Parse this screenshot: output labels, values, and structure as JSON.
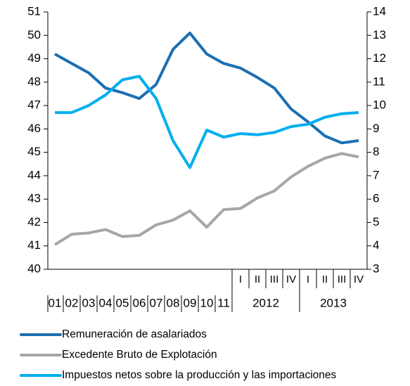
{
  "chart_data": {
    "type": "line",
    "categories": [
      "01",
      "02",
      "03",
      "04",
      "05",
      "06",
      "07",
      "08",
      "09",
      "10",
      "11",
      "I",
      "II",
      "III",
      "IV",
      "I",
      "II",
      "III",
      "IV"
    ],
    "year_groups": [
      "2012",
      "2013"
    ],
    "series": [
      {
        "name": "Remuneración de asalariados",
        "color": "#1b6fb3",
        "values": [
          49.2,
          48.8,
          48.4,
          47.75,
          47.55,
          47.3,
          47.9,
          49.4,
          50.1,
          49.2,
          48.8,
          48.6,
          48.2,
          47.75,
          46.85,
          46.3,
          45.7,
          45.4,
          45.5
        ]
      },
      {
        "name": "Excedente Bruto de Explotación",
        "color": "#a6a6a6",
        "values": [
          41.05,
          41.5,
          41.55,
          41.7,
          41.4,
          41.45,
          41.9,
          42.1,
          42.5,
          41.8,
          42.55,
          42.6,
          43.05,
          43.35,
          43.95,
          44.4,
          44.75,
          44.95,
          44.8
        ]
      },
      {
        "name": "Impuestos netos sobre la producción y las importaciones",
        "color": "#00aeef",
        "axis": "y2",
        "values": [
          9.7,
          9.7,
          10.0,
          10.45,
          11.1,
          11.25,
          10.3,
          8.5,
          7.35,
          8.95,
          8.65,
          8.8,
          8.75,
          8.85,
          9.1,
          9.2,
          9.5,
          9.65,
          9.7
        ]
      }
    ],
    "ylim": [
      40,
      51
    ],
    "yticks": [
      40,
      41,
      42,
      43,
      44,
      45,
      46,
      47,
      48,
      49,
      50,
      51
    ],
    "y2lim": [
      3,
      14
    ],
    "y2ticks": [
      3,
      4,
      5,
      6,
      7,
      8,
      9,
      10,
      11,
      12,
      13,
      14
    ],
    "legend": "bottom"
  }
}
